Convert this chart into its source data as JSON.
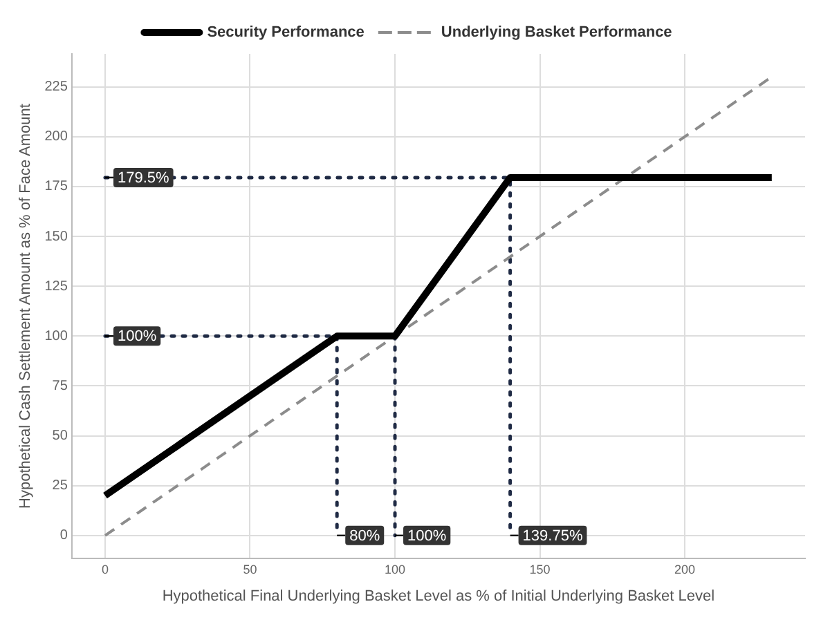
{
  "chart_data": {
    "type": "line",
    "xlabel": "Hypothetical Final Underlying Basket Level as % of Initial Underlying Basket Level",
    "ylabel": "Hypothetical Cash Settlement Amount as % of Face Amount",
    "series": [
      {
        "name": "Security Performance",
        "color": "#000000",
        "line_style": "solid",
        "x": [
          0,
          80,
          100,
          139.75,
          230
        ],
        "values": [
          20,
          100,
          100,
          179.5,
          179.5
        ]
      },
      {
        "name": "Underlying Basket Performance",
        "color": "#8c8c8c",
        "line_style": "dashed",
        "x": [
          0,
          230
        ],
        "values": [
          0,
          230
        ]
      },
      {
        "color": "#1f2a44",
        "line_style": "dotted",
        "x": [
          0,
          139.75,
          139.75
        ],
        "values": [
          179.5,
          179.5,
          0
        ]
      },
      {
        "color": "#1f2a44",
        "line_style": "dotted",
        "x": [
          0,
          80,
          80
        ],
        "values": [
          100,
          100,
          0
        ]
      },
      {
        "color": "#1f2a44",
        "line_style": "dotted",
        "x": [
          100,
          100
        ],
        "values": [
          100,
          0
        ]
      }
    ],
    "annotations": [
      {
        "text": "179.5%",
        "x": 0,
        "y": 179.5
      },
      {
        "text": "100%",
        "x": 0,
        "y": 100
      },
      {
        "text": "80%",
        "x": 80,
        "y": 0
      },
      {
        "text": "100%",
        "x": 100,
        "y": 0
      },
      {
        "text": "139.75%",
        "x": 139.75,
        "y": 0
      }
    ],
    "xlim": [
      -11.5,
      241.5
    ],
    "xticks": [
      0,
      50,
      100,
      150,
      200
    ],
    "ylim": [
      -11.5,
      241.5
    ],
    "yticks": [
      0,
      25,
      50,
      75,
      100,
      125,
      150,
      175,
      200,
      225
    ],
    "grid": true,
    "legend": "top",
    "marker": "none"
  }
}
